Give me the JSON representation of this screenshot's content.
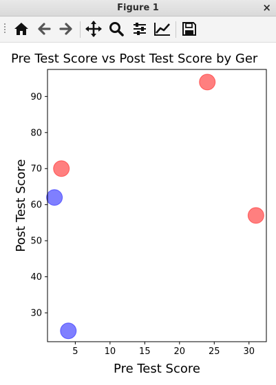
{
  "window": {
    "title": "Figure 1",
    "close_glyph": "×"
  },
  "toolbar": {
    "buttons": [
      {
        "name": "home-icon"
      },
      {
        "name": "back-arrow-icon"
      },
      {
        "name": "forward-arrow-icon"
      },
      {
        "name": "pan-icon"
      },
      {
        "name": "zoom-icon"
      },
      {
        "name": "subplots-config-icon"
      },
      {
        "name": "edit-axes-icon"
      },
      {
        "name": "save-icon"
      }
    ]
  },
  "chart_data": {
    "type": "scatter",
    "title": "Pre Test Score vs Post Test Score by Ger",
    "xlabel": "Pre Test Score",
    "ylabel": "Post Test Score",
    "xlim": [
      1.0,
      32.5
    ],
    "ylim": [
      22.0,
      97.5
    ],
    "xticks": [
      5,
      10,
      15,
      20,
      25,
      30
    ],
    "yticks": [
      30,
      40,
      50,
      60,
      70,
      80,
      90
    ],
    "series": [
      {
        "color": "#ff0000",
        "points": [
          {
            "x": 3,
            "y": 70
          },
          {
            "x": 24,
            "y": 94
          },
          {
            "x": 31,
            "y": 57
          }
        ]
      },
      {
        "color": "#0000ff",
        "points": [
          {
            "x": 2,
            "y": 62
          },
          {
            "x": 4,
            "y": 25
          }
        ]
      }
    ],
    "marker_alpha": 0.5,
    "grid": false
  }
}
